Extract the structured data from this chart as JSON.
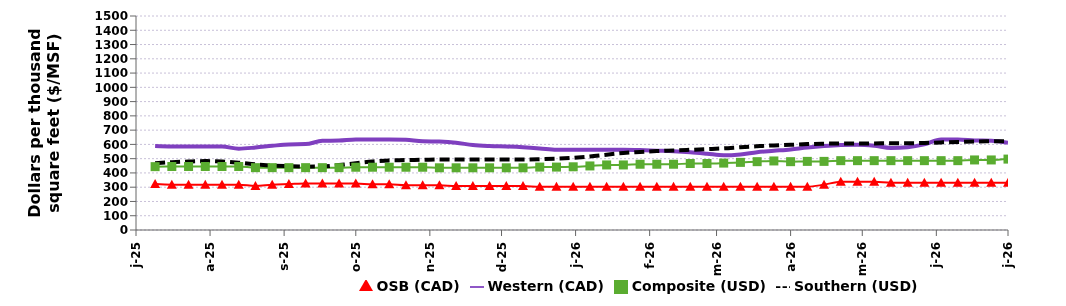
{
  "chart_data": {
    "type": "line",
    "ylabel": "Dollars per thousand square feet ($/MSF)",
    "x": [
      "2025-07-09",
      "2025-07-16",
      "2025-07-23",
      "2025-07-30",
      "2025-08-06",
      "2025-08-13",
      "2025-08-20",
      "2025-08-27",
      "2025-09-03",
      "2025-09-10",
      "2025-09-17",
      "2025-09-24",
      "2025-10-01",
      "2025-10-08",
      "2025-10-15",
      "2025-10-22",
      "2025-10-29",
      "2025-11-05",
      "2025-11-12",
      "2025-11-19",
      "2025-11-26",
      "2025-12-03",
      "2025-12-10",
      "2025-12-17",
      "2025-12-24",
      "2025-12-31",
      "2026-01-07",
      "2026-01-14",
      "2026-01-21",
      "2026-01-28",
      "2026-02-04",
      "2026-02-11",
      "2026-02-18",
      "2026-02-25",
      "2026-03-04",
      "2026-03-11",
      "2026-03-18",
      "2026-03-25",
      "2026-04-01",
      "2026-04-08",
      "2026-04-15",
      "2026-04-22",
      "2026-04-29",
      "2026-05-06",
      "2026-05-13",
      "2026-05-20",
      "2026-05-27",
      "2026-06-03",
      "2026-06-10",
      "2026-06-17",
      "2026-06-24",
      "2026-07-01"
    ],
    "series": [
      {
        "name": "OSB (CAD)",
        "color": "#ff0000",
        "marker": "triangle",
        "line_style": "solid",
        "values": [
          322,
          318,
          318,
          318,
          318,
          318,
          308,
          318,
          322,
          326,
          326,
          326,
          326,
          320,
          320,
          313,
          313,
          313,
          308,
          308,
          308,
          308,
          308,
          303,
          303,
          303,
          303,
          303,
          303,
          303,
          303,
          303,
          303,
          303,
          303,
          303,
          303,
          303,
          303,
          303,
          318,
          338,
          338,
          338,
          332,
          332,
          332,
          332,
          332,
          332,
          332,
          332
        ]
      },
      {
        "name": "Western (CAD)",
        "color": "#7f3fbf",
        "marker": "none",
        "line_style": "solid",
        "values": [
          588,
          585,
          585,
          585,
          585,
          570,
          578,
          590,
          600,
          602,
          625,
          627,
          635,
          635,
          635,
          632,
          622,
          620,
          612,
          595,
          588,
          585,
          580,
          572,
          562,
          562,
          562,
          562,
          562,
          560,
          556,
          552,
          545,
          535,
          524,
          530,
          545,
          555,
          565,
          578,
          588,
          595,
          597,
          590,
          575,
          580,
          600,
          635,
          635,
          628,
          625,
          612
        ]
      },
      {
        "name": "Composite (USD)",
        "color": "#5aac30",
        "marker": "square",
        "line_style": "solid",
        "values": [
          444,
          445,
          445,
          445,
          445,
          445,
          437,
          437,
          437,
          437,
          437,
          437,
          440,
          440,
          440,
          440,
          440,
          436,
          436,
          436,
          436,
          436,
          436,
          441,
          441,
          443,
          449,
          456,
          456,
          461,
          461,
          461,
          466,
          466,
          469,
          474,
          479,
          484,
          479,
          481,
          481,
          486,
          486,
          486,
          486,
          486,
          486,
          486,
          486,
          491,
          491,
          497
        ]
      },
      {
        "name": "Southern (USD)",
        "color": "#000000",
        "marker": "none",
        "line_style": "dashed",
        "values": [
          468,
          475,
          480,
          483,
          480,
          472,
          460,
          452,
          447,
          444,
          445,
          455,
          468,
          480,
          488,
          490,
          492,
          494,
          494,
          494,
          494,
          494,
          494,
          496,
          500,
          506,
          515,
          528,
          540,
          547,
          553,
          557,
          562,
          567,
          572,
          580,
          587,
          593,
          597,
          602,
          605,
          606,
          606,
          607,
          608,
          608,
          610,
          614,
          617,
          620,
          622,
          623
        ]
      }
    ],
    "xlim": [
      "2025-07-01",
      "2026-07-01"
    ],
    "xticks": [
      {
        "value": "2025-07-01",
        "label": "j-25"
      },
      {
        "value": "2025-08-01",
        "label": "a-25"
      },
      {
        "value": "2025-09-01",
        "label": "s-25"
      },
      {
        "value": "2025-10-01",
        "label": "o-25"
      },
      {
        "value": "2025-11-01",
        "label": "n-25"
      },
      {
        "value": "2025-12-01",
        "label": "d-25"
      },
      {
        "value": "2026-01-01",
        "label": "j-26"
      },
      {
        "value": "2026-02-01",
        "label": "f-26"
      },
      {
        "value": "2026-03-01",
        "label": "m-26"
      },
      {
        "value": "2026-04-01",
        "label": "a-26"
      },
      {
        "value": "2026-05-01",
        "label": "m-26"
      },
      {
        "value": "2026-06-01",
        "label": "j-26"
      },
      {
        "value": "2026-07-01",
        "label": "j-26"
      }
    ],
    "ylim": [
      0,
      1500
    ],
    "yticks": [
      0,
      100,
      200,
      300,
      400,
      500,
      600,
      700,
      800,
      900,
      1000,
      1100,
      1200,
      1300,
      1400,
      1500
    ],
    "grid": "y",
    "legend": "bottom"
  }
}
